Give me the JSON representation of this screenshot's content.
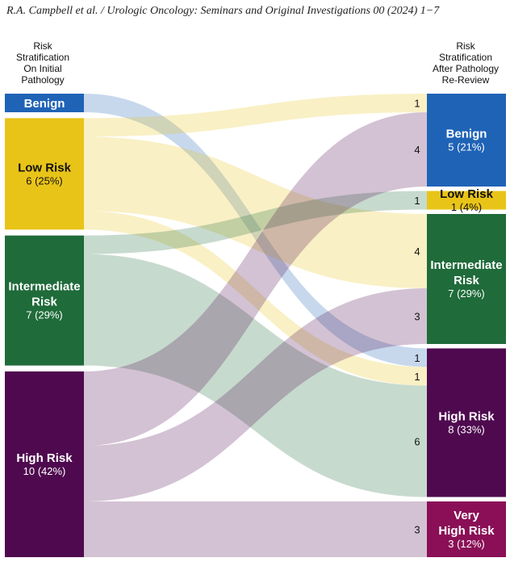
{
  "header": {
    "citation": "R.A. Campbell et al. / Urologic Oncology: Seminars and Original Investigations 00 (2024) 1−7"
  },
  "left_title": [
    "Risk",
    "Stratification",
    "On Initial",
    "Pathology"
  ],
  "right_title": [
    "Risk",
    "Stratification",
    "After Pathology",
    "Re-Review"
  ],
  "colors": {
    "benign": "#1f63b6",
    "low": "#e9c418",
    "intermediate": "#1f6b3a",
    "high": "#4f0a4f",
    "very_high": "#8a0f56"
  },
  "left_nodes": [
    {
      "id": "benign",
      "lines": [
        "Benign"
      ],
      "sub": "",
      "count": 1
    },
    {
      "id": "low",
      "lines": [
        "Low Risk"
      ],
      "sub": "6 (25%)",
      "count": 6
    },
    {
      "id": "intermediate",
      "lines": [
        "Intermediate",
        "Risk"
      ],
      "sub": "7 (29%)",
      "count": 7
    },
    {
      "id": "high",
      "lines": [
        "High Risk"
      ],
      "sub": "10 (42%)",
      "count": 10
    }
  ],
  "right_nodes": [
    {
      "id": "benign",
      "lines": [
        "Benign"
      ],
      "sub": "5 (21%)",
      "count": 5
    },
    {
      "id": "low",
      "lines": [
        "Low Risk"
      ],
      "sub": "1 (4%)",
      "count": 1
    },
    {
      "id": "intermediate",
      "lines": [
        "Intermediate",
        "Risk"
      ],
      "sub": "7 (29%)",
      "count": 7
    },
    {
      "id": "high",
      "lines": [
        "High Risk"
      ],
      "sub": "8 (33%)",
      "count": 8
    },
    {
      "id": "very_high",
      "lines": [
        "Very",
        "High Risk"
      ],
      "sub": "3 (12%)",
      "count": 3
    }
  ],
  "flows": [
    {
      "from": "benign",
      "to": "high",
      "value": 1
    },
    {
      "from": "low",
      "to": "benign",
      "value": 1
    },
    {
      "from": "low",
      "to": "intermediate",
      "value": 4
    },
    {
      "from": "low",
      "to": "high",
      "value": 1
    },
    {
      "from": "intermediate",
      "to": "low",
      "value": 1
    },
    {
      "from": "intermediate",
      "to": "high",
      "value": 6
    },
    {
      "from": "high",
      "to": "benign",
      "value": 4
    },
    {
      "from": "high",
      "to": "intermediate",
      "value": 3
    },
    {
      "from": "high",
      "to": "very_high",
      "value": 3
    }
  ],
  "flow_counts": [
    "1",
    "4",
    "1",
    "4",
    "3",
    "1",
    "1",
    "6",
    "3"
  ]
}
